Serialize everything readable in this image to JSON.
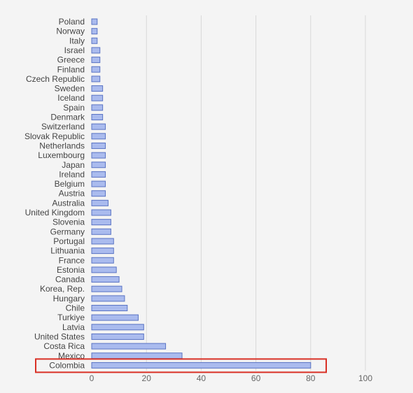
{
  "chart_data": {
    "type": "bar",
    "orientation": "horizontal",
    "categories": [
      "Poland",
      "Norway",
      "Italy",
      "Israel",
      "Greece",
      "Finland",
      "Czech Republic",
      "Sweden",
      "Iceland",
      "Spain",
      "Denmark",
      "Switzerland",
      "Slovak Republic",
      "Netherlands",
      "Luxembourg",
      "Japan",
      "Ireland",
      "Belgium",
      "Austria",
      "Australia",
      "United Kingdom",
      "Slovenia",
      "Germany",
      "Portugal",
      "Lithuania",
      "France",
      "Estonia",
      "Canada",
      "Korea, Rep.",
      "Hungary",
      "Chile",
      "Turkiye",
      "Latvia",
      "United States",
      "Costa Rica",
      "Mexico",
      "Colombia"
    ],
    "values": [
      2,
      2,
      2,
      3,
      3,
      3,
      3,
      4,
      4,
      4,
      4,
      5,
      5,
      5,
      5,
      5,
      5,
      5,
      5,
      6,
      7,
      7,
      7,
      8,
      8,
      8,
      9,
      10,
      11,
      12,
      13,
      17,
      19,
      19,
      27,
      33,
      80
    ],
    "xlim": [
      0,
      100
    ],
    "xticks": [
      "0",
      "20",
      "40",
      "60",
      "80",
      "100"
    ],
    "grid": true,
    "legend": "none",
    "highlight": "Colombia",
    "colors": {
      "bar_fill": "#aabbee",
      "bar_edge": "#5a74c4",
      "highlight_box": "#d93025",
      "grid": "#d8d8d8",
      "background": "#f4f4f4"
    }
  }
}
